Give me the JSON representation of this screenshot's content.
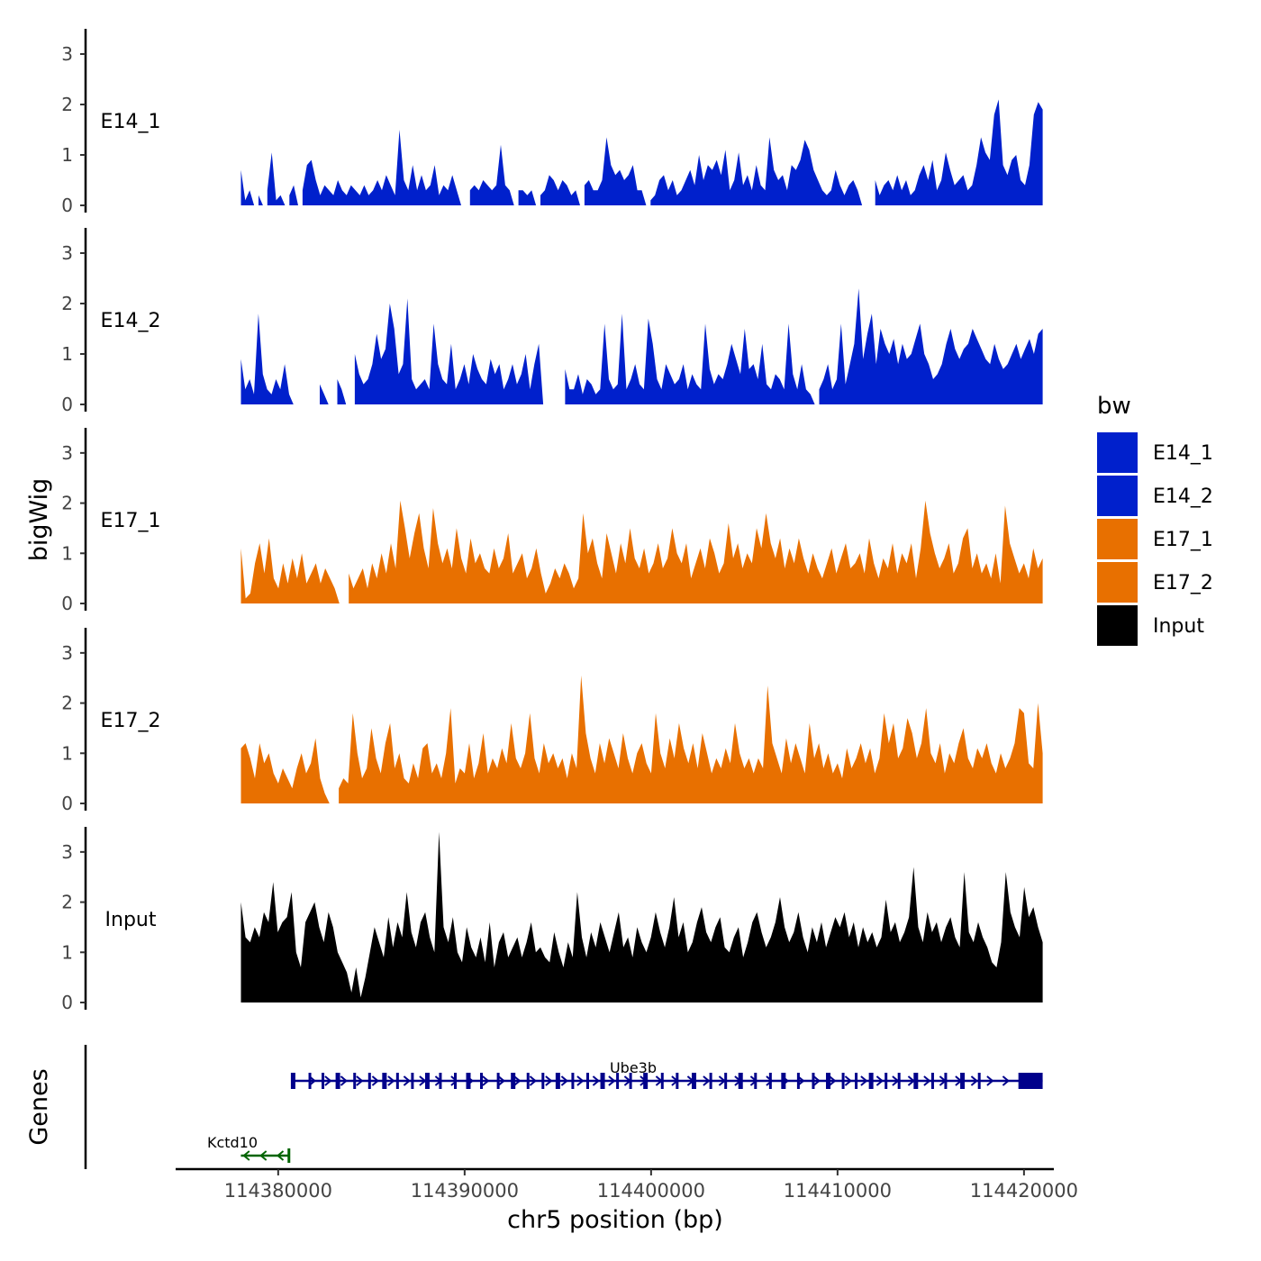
{
  "chart_data": {
    "type": "area",
    "title": "",
    "xlabel": "chr5 position (bp)",
    "ylabel": "bigWig",
    "genes_label": "Genes",
    "xlim": [
      114374500,
      114421600
    ],
    "ylim": [
      0,
      3.5
    ],
    "x_ticks": [
      114380000,
      114390000,
      114400000,
      114410000,
      114420000
    ],
    "x_tick_labels": [
      "114380000",
      "114390000",
      "114400000",
      "114410000",
      "114420000"
    ],
    "y_ticks": [
      0,
      1,
      2,
      3
    ],
    "y_tick_labels": [
      "0",
      "1",
      "2",
      "3"
    ],
    "x_range": [
      114378000,
      114421000
    ],
    "legend": {
      "title": "bw",
      "position": "right",
      "entries": [
        {
          "label": "E14_1",
          "color": "#0020CC"
        },
        {
          "label": "E14_2",
          "color": "#0020CC"
        },
        {
          "label": "E17_1",
          "color": "#E87000"
        },
        {
          "label": "E17_2",
          "color": "#E87000"
        },
        {
          "label": "Input",
          "color": "#000000"
        }
      ]
    },
    "series": [
      {
        "name": "E14_1",
        "color": "#0020CC",
        "values": [
          0.7,
          0.1,
          0.3,
          0,
          0.2,
          0,
          0.3,
          1.05,
          0.1,
          0.2,
          0,
          0.2,
          0.4,
          0,
          0.3,
          0.8,
          0.9,
          0.5,
          0.2,
          0.4,
          0.3,
          0.2,
          0.5,
          0.3,
          0.2,
          0.4,
          0.3,
          0.2,
          0.4,
          0.2,
          0.3,
          0.5,
          0.3,
          0.6,
          0.4,
          0.2,
          1.5,
          0.5,
          0.3,
          0.8,
          0.3,
          0.6,
          0.3,
          0.4,
          0.8,
          0.2,
          0.4,
          0.3,
          0.6,
          0.3,
          0,
          0,
          0.3,
          0.4,
          0.3,
          0.5,
          0.4,
          0.3,
          0.4,
          1.2,
          0.4,
          0.3,
          0,
          0.3,
          0.3,
          0.2,
          0.3,
          0,
          0.2,
          0.3,
          0.6,
          0.5,
          0.3,
          0.5,
          0.4,
          0.2,
          0.3,
          0,
          0.4,
          0.5,
          0.3,
          0.3,
          0.5,
          1.35,
          0.8,
          0.6,
          0.7,
          0.5,
          0.6,
          0.8,
          0.3,
          0.3,
          0,
          0.1,
          0.2,
          0.5,
          0.6,
          0.3,
          0.5,
          0.2,
          0.3,
          0.5,
          0.7,
          0.4,
          1.0,
          0.5,
          0.8,
          0.7,
          0.9,
          0.6,
          1.1,
          0.3,
          0.5,
          1.05,
          0.4,
          0.6,
          0.3,
          0.8,
          0.4,
          0.3,
          1.35,
          0.7,
          0.5,
          0.6,
          0.3,
          0.8,
          0.7,
          0.9,
          1.3,
          1.1,
          0.7,
          0.5,
          0.3,
          0.2,
          0.3,
          0.7,
          0.4,
          0.2,
          0.4,
          0.5,
          0.3,
          0,
          0,
          0,
          0.5,
          0.2,
          0.4,
          0.5,
          0.3,
          0.6,
          0.3,
          0.5,
          0.2,
          0.3,
          0.6,
          0.8,
          0.5,
          0.9,
          0.3,
          0.5,
          1.05,
          0.7,
          0.4,
          0.5,
          0.6,
          0.3,
          0.4,
          0.8,
          1.35,
          1.05,
          0.9,
          1.8,
          2.1,
          0.8,
          0.6,
          0.9,
          1.0,
          0.5,
          0.4,
          0.8,
          1.8,
          2.05,
          1.9
        ]
      },
      {
        "name": "E14_2",
        "color": "#0020CC",
        "values": [
          0.9,
          0.3,
          0.5,
          0.2,
          1.8,
          0.6,
          0.3,
          0.2,
          0.5,
          0.3,
          0.8,
          0.2,
          0,
          0,
          0,
          0,
          0,
          0,
          0.4,
          0.2,
          0,
          0,
          0.5,
          0.3,
          0,
          0,
          1.0,
          0.6,
          0.4,
          0.5,
          0.8,
          1.4,
          0.9,
          1.1,
          2.0,
          1.5,
          0.6,
          0.8,
          2.1,
          0.5,
          0.3,
          0.4,
          0.5,
          0.3,
          1.6,
          0.8,
          0.5,
          0.4,
          1.2,
          0.3,
          0.5,
          0.8,
          0.4,
          1.0,
          0.7,
          0.5,
          0.4,
          0.9,
          0.6,
          0.8,
          0.3,
          0.5,
          0.8,
          0.4,
          0.6,
          1.0,
          0.3,
          0.8,
          1.2,
          0,
          0,
          0,
          0,
          0,
          0.7,
          0.3,
          0.3,
          0.6,
          0.2,
          0.5,
          0.4,
          0.2,
          0.3,
          1.6,
          0.5,
          0.3,
          0.4,
          1.8,
          0.3,
          0.5,
          0.8,
          0.4,
          0.3,
          1.7,
          1.2,
          0.5,
          0.3,
          0.8,
          0.6,
          0.4,
          0.5,
          0.8,
          0.3,
          0.6,
          0.4,
          0.3,
          1.6,
          0.7,
          0.4,
          0.6,
          0.5,
          0.8,
          1.2,
          0.9,
          0.6,
          1.5,
          0.7,
          0.8,
          0.5,
          1.2,
          0.4,
          0.3,
          0.6,
          0.5,
          0.3,
          1.6,
          0.6,
          0.3,
          0.8,
          0.3,
          0.2,
          0,
          0.3,
          0.5,
          0.8,
          0.3,
          0.5,
          1.6,
          0.4,
          0.8,
          1.2,
          2.3,
          0.9,
          1.4,
          1.8,
          0.8,
          1.5,
          1.2,
          1.0,
          1.3,
          0.8,
          1.2,
          0.9,
          1.0,
          1.3,
          1.6,
          1.0,
          0.8,
          0.5,
          0.6,
          0.8,
          1.2,
          1.5,
          1.1,
          0.9,
          1.1,
          1.2,
          1.5,
          1.3,
          1.1,
          0.9,
          0.8,
          1.2,
          0.9,
          0.7,
          0.8,
          1.0,
          1.2,
          0.9,
          1.1,
          1.3,
          1.0,
          1.4,
          1.5
        ]
      },
      {
        "name": "E17_1",
        "color": "#E87000",
        "values": [
          1.1,
          0.1,
          0.2,
          0.8,
          1.2,
          0.6,
          1.3,
          0.5,
          0.3,
          0.8,
          0.4,
          0.9,
          0.5,
          1.0,
          0.4,
          0.6,
          0.8,
          0.4,
          0.7,
          0.5,
          0.3,
          0,
          0,
          0.6,
          0.3,
          0.5,
          0.7,
          0.3,
          0.8,
          0.5,
          1.0,
          0.6,
          1.2,
          0.7,
          2.05,
          1.5,
          0.9,
          1.4,
          1.8,
          1.1,
          0.7,
          1.9,
          1.2,
          0.8,
          1.1,
          0.7,
          1.5,
          0.9,
          0.6,
          1.3,
          0.8,
          1.0,
          0.7,
          0.6,
          1.1,
          0.7,
          0.9,
          1.4,
          0.6,
          0.8,
          1.0,
          0.5,
          0.7,
          1.1,
          0.6,
          0.2,
          0.4,
          0.7,
          0.5,
          0.8,
          0.6,
          0.3,
          0.5,
          1.8,
          1.0,
          1.3,
          0.8,
          0.5,
          1.4,
          1.0,
          0.6,
          1.2,
          0.8,
          1.5,
          0.9,
          0.7,
          1.1,
          0.6,
          0.8,
          1.2,
          0.7,
          0.9,
          1.5,
          1.0,
          0.8,
          1.2,
          0.5,
          0.8,
          1.1,
          0.7,
          1.3,
          1.0,
          0.6,
          0.8,
          1.6,
          0.9,
          1.2,
          0.7,
          1.0,
          0.8,
          1.5,
          1.1,
          1.8,
          1.2,
          0.9,
          1.3,
          0.7,
          1.1,
          0.8,
          1.3,
          0.9,
          0.6,
          1.0,
          0.7,
          0.5,
          0.8,
          1.1,
          0.6,
          0.9,
          1.2,
          0.7,
          0.8,
          1.0,
          0.6,
          1.3,
          0.8,
          0.5,
          0.9,
          0.7,
          1.2,
          0.6,
          1.0,
          0.8,
          1.2,
          0.5,
          1.1,
          2.05,
          1.4,
          1.0,
          0.7,
          0.9,
          1.2,
          0.6,
          0.8,
          1.3,
          1.5,
          0.7,
          1.0,
          0.6,
          0.8,
          0.5,
          1.0,
          0.4,
          1.95,
          1.2,
          0.9,
          0.6,
          0.8,
          0.5,
          1.1,
          0.7,
          0.9
        ]
      },
      {
        "name": "E17_2",
        "color": "#E87000",
        "values": [
          1.1,
          1.2,
          0.9,
          0.5,
          1.2,
          0.8,
          1.0,
          0.6,
          0.4,
          0.7,
          0.5,
          0.3,
          0.7,
          1.0,
          0.6,
          0.8,
          1.3,
          0.5,
          0.2,
          0,
          0,
          0.3,
          0.5,
          0.4,
          1.8,
          1.0,
          0.5,
          0.7,
          1.5,
          0.9,
          0.6,
          1.2,
          1.6,
          0.7,
          1.0,
          0.5,
          0.4,
          0.8,
          0.5,
          1.1,
          1.2,
          0.6,
          0.8,
          0.5,
          1.0,
          1.9,
          0.4,
          0.7,
          0.6,
          1.2,
          0.5,
          0.8,
          1.4,
          0.6,
          0.9,
          0.7,
          1.1,
          0.8,
          1.6,
          0.9,
          0.7,
          1.0,
          1.8,
          0.9,
          0.6,
          1.2,
          0.8,
          1.0,
          0.7,
          0.9,
          0.5,
          1.0,
          0.7,
          2.55,
          1.4,
          0.9,
          0.6,
          1.2,
          0.8,
          1.3,
          1.0,
          0.7,
          1.4,
          0.9,
          0.6,
          1.0,
          1.2,
          0.8,
          0.6,
          1.8,
          1.0,
          0.7,
          1.3,
          0.9,
          1.6,
          1.1,
          0.8,
          1.2,
          0.7,
          1.4,
          1.0,
          0.6,
          0.9,
          0.7,
          1.1,
          0.8,
          1.6,
          1.0,
          0.7,
          0.9,
          0.6,
          0.9,
          0.7,
          2.35,
          1.2,
          0.9,
          0.6,
          1.3,
          0.8,
          1.2,
          0.9,
          0.6,
          1.6,
          0.9,
          1.2,
          0.7,
          1.0,
          0.6,
          0.8,
          0.5,
          1.1,
          0.7,
          0.9,
          1.2,
          0.8,
          1.1,
          0.6,
          0.9,
          1.8,
          1.2,
          1.6,
          0.9,
          1.1,
          1.7,
          1.4,
          0.9,
          1.2,
          1.9,
          1.0,
          0.8,
          1.2,
          0.6,
          1.0,
          0.8,
          1.2,
          1.5,
          0.9,
          0.7,
          1.1,
          0.9,
          1.2,
          0.8,
          0.6,
          1.0,
          0.7,
          0.9,
          1.2,
          1.9,
          1.8,
          0.8,
          0.7,
          2.0,
          1.0
        ]
      },
      {
        "name": "Input",
        "color": "#000000",
        "values": [
          2.0,
          1.3,
          1.2,
          1.5,
          1.3,
          1.8,
          1.6,
          2.4,
          1.4,
          1.6,
          1.7,
          2.2,
          1.0,
          0.7,
          1.6,
          1.8,
          2.0,
          1.5,
          1.2,
          1.8,
          1.5,
          1.0,
          0.8,
          0.6,
          0.2,
          0.7,
          0.1,
          0.5,
          1.0,
          1.5,
          1.2,
          0.9,
          1.7,
          1.1,
          1.6,
          1.3,
          2.2,
          1.4,
          1.1,
          1.6,
          1.8,
          1.3,
          1.0,
          3.4,
          1.5,
          1.2,
          1.7,
          1.0,
          0.8,
          1.5,
          1.1,
          0.9,
          1.3,
          0.8,
          1.6,
          0.7,
          1.2,
          1.4,
          0.9,
          1.1,
          1.3,
          0.9,
          1.2,
          1.6,
          1.0,
          1.1,
          0.9,
          0.8,
          1.4,
          1.0,
          0.7,
          1.2,
          0.9,
          2.2,
          1.3,
          0.9,
          1.4,
          1.1,
          1.6,
          1.3,
          1.0,
          1.4,
          1.8,
          1.1,
          1.3,
          0.9,
          1.5,
          1.2,
          1.0,
          1.3,
          1.8,
          1.4,
          1.1,
          1.5,
          2.1,
          1.3,
          1.6,
          1.0,
          1.2,
          1.6,
          1.9,
          1.4,
          1.2,
          1.5,
          1.7,
          1.1,
          1.0,
          1.3,
          1.5,
          0.9,
          1.2,
          1.6,
          1.8,
          1.4,
          1.1,
          1.3,
          1.6,
          2.1,
          1.5,
          1.2,
          1.4,
          1.8,
          1.3,
          1.0,
          1.5,
          1.2,
          1.6,
          1.1,
          1.4,
          1.7,
          1.5,
          1.8,
          1.3,
          1.6,
          1.1,
          1.5,
          1.2,
          1.4,
          1.1,
          1.3,
          2.05,
          1.4,
          1.6,
          1.2,
          1.4,
          1.7,
          2.7,
          1.5,
          1.2,
          1.8,
          1.4,
          1.6,
          1.2,
          1.5,
          1.7,
          1.3,
          1.1,
          2.6,
          1.4,
          1.2,
          1.6,
          1.3,
          1.1,
          0.8,
          0.7,
          1.2,
          2.6,
          1.8,
          1.5,
          1.3,
          2.3,
          1.7,
          1.9,
          1.5,
          1.2
        ]
      }
    ],
    "genes": [
      {
        "name": "Ube3b",
        "start": 114380800,
        "end": 114421000,
        "strand": "+",
        "color": "#00008B",
        "exons": [
          114380800,
          114381700,
          114382400,
          114383200,
          114384100,
          114384900,
          114385700,
          114386400,
          114387200,
          114388000,
          114388700,
          114389500,
          114390200,
          114390900,
          114391800,
          114392600,
          114393400,
          114394200,
          114395000,
          114395800,
          114396600,
          114397400,
          114398200,
          114398900,
          114399700,
          114400600,
          114401400,
          114402300,
          114403200,
          114404000,
          114404800,
          114405600,
          114406400,
          114407100,
          114407900,
          114408700,
          114409500,
          114410300,
          114411000,
          114411800,
          114412600,
          114413300,
          114414200,
          114415100,
          114415800,
          114416700,
          114417600
        ],
        "utr3": [
          114419700,
          114421000
        ]
      },
      {
        "name": "Kctd10",
        "start": 114378000,
        "end": 114380600,
        "strand": "-",
        "color": "#006400"
      }
    ]
  }
}
